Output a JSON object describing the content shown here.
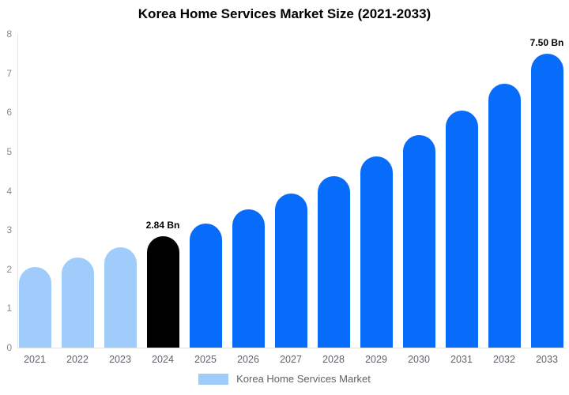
{
  "title": "Korea Home Services Market Size (2021-2033)",
  "legend": {
    "label": "Korea Home Services Market",
    "swatch_color": "#a0ccfb"
  },
  "colors": {
    "bar_blue": "#086cfa",
    "bar_light_blue": "#a0ccfb",
    "bar_black": "#000000",
    "ytick_text": "#8a8a8a",
    "xtick_text": "#5f6368",
    "axis_line": "#e4e4e4",
    "value_label": "#000000"
  },
  "chart_data": {
    "type": "bar",
    "title": "Korea Home Services Market Size (2021-2033)",
    "categories": [
      "2021",
      "2022",
      "2023",
      "2024",
      "2025",
      "2026",
      "2027",
      "2028",
      "2029",
      "2030",
      "2031",
      "2032",
      "2033"
    ],
    "values": [
      2.05,
      2.3,
      2.55,
      2.84,
      3.16,
      3.52,
      3.93,
      4.38,
      4.88,
      5.43,
      6.05,
      6.73,
      7.5
    ],
    "unit": "Bn",
    "bar_colors": [
      "#a0ccfb",
      "#a0ccfb",
      "#a0ccfb",
      "#000000",
      "#086cfa",
      "#086cfa",
      "#086cfa",
      "#086cfa",
      "#086cfa",
      "#086cfa",
      "#086cfa",
      "#086cfa",
      "#086cfa"
    ],
    "annotations": [
      {
        "category": "2024",
        "text": "2.84 Bn"
      },
      {
        "category": "2033",
        "text": "7.50 Bn"
      }
    ],
    "xlabel": "",
    "ylabel": "",
    "ylim": [
      0,
      8
    ],
    "yticks": [
      0,
      1,
      2,
      3,
      4,
      5,
      6,
      7,
      8
    ],
    "grid": false,
    "legend_entries": [
      "Korea Home Services Market"
    ],
    "legend_position": "bottom",
    "bar_shape": "rounded-top"
  }
}
